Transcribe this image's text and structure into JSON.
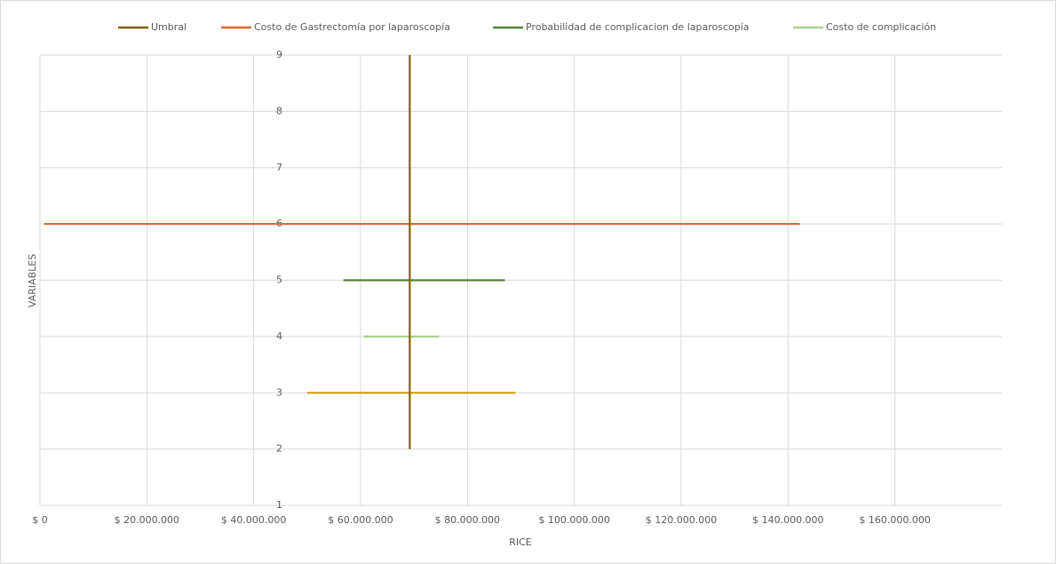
{
  "chart_data": {
    "type": "line",
    "x_label": "RICE",
    "y_label": "VARIABLES",
    "xlim": [
      0,
      180000000
    ],
    "xticks": [
      {
        "value": 0,
        "label": "$ 0"
      },
      {
        "value": 20000000,
        "label": "$ 20.000.000"
      },
      {
        "value": 40000000,
        "label": "$ 40.000.000"
      },
      {
        "value": 60000000,
        "label": "$ 60.000.000"
      },
      {
        "value": 80000000,
        "label": "$ 80.000.000"
      },
      {
        "value": 100000000,
        "label": "$ 100.000.000"
      },
      {
        "value": 120000000,
        "label": "$ 120.000.000"
      },
      {
        "value": 140000000,
        "label": "$ 140.000.000"
      },
      {
        "value": 160000000,
        "label": "$ 160.000.000"
      }
    ],
    "ylim": [
      1,
      9
    ],
    "yticks": [
      1,
      2,
      3,
      4,
      5,
      6,
      7,
      8,
      9
    ],
    "grid": true,
    "legend": "top",
    "series": [
      {
        "name": "Umbral",
        "color": "#7f6000",
        "x": [
          69200000,
          69200000
        ],
        "values": [
          2,
          9
        ]
      },
      {
        "name": "Costo de Gastrectomía por laparoscopía",
        "color": "#e06a2c",
        "x": [
          800000,
          142200000
        ],
        "values": [
          6,
          6
        ]
      },
      {
        "name": "Probabilidad de complicacion de laparoscopía",
        "color": "#548235",
        "x": [
          56800000,
          87000000
        ],
        "values": [
          5,
          5
        ]
      },
      {
        "name": "Costo de complicación",
        "color": "#a9d18e",
        "x": [
          60600000,
          74700000
        ],
        "values": [
          4,
          4
        ]
      },
      {
        "color": "#d4a017",
        "x": [
          50000000,
          89000000
        ],
        "values": [
          3,
          3
        ]
      }
    ]
  }
}
